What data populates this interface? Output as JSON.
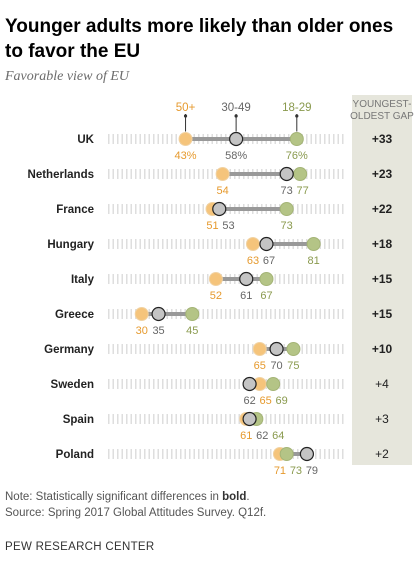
{
  "title_line1": "Younger adults more likely than older ones",
  "title_line2": "to favor the EU",
  "subtitle": "Favorable view of EU",
  "note_prefix": "Note: Statistically significant differences in ",
  "note_bold": "bold",
  "note_suffix": ".",
  "source": "Source: Spring 2017 Global Attitudes Survey. Q12f.",
  "brand": "PEW RESEARCH CENTER",
  "colors": {
    "age_50_plus": "#f5c47b",
    "age_30_49": "#c4c4c4",
    "age_18_29": "#b4c486",
    "label_50_plus": "#e69a2e",
    "label_30_49": "#666666",
    "label_18_29": "#8a9a4e",
    "gap_background": "#e6e6dc",
    "track": "#dedede",
    "connector": "#999999"
  },
  "chart_data": {
    "type": "dot-plot",
    "title": "Younger adults more likely than older ones to favor the EU",
    "subtitle": "Favorable view of EU",
    "unit": "%",
    "legend": {
      "placement": "top",
      "entries": [
        "50+",
        "30-49",
        "18-29"
      ]
    },
    "gap_header": [
      "YOUNGEST-",
      "OLDEST GAP"
    ],
    "xlim": [
      20,
      90
    ],
    "series": [
      {
        "name": "50+",
        "values": [
          43,
          54,
          51,
          63,
          52,
          30,
          65,
          65,
          61,
          71
        ]
      },
      {
        "name": "30-49",
        "values": [
          58,
          73,
          53,
          67,
          61,
          35,
          70,
          62,
          62,
          79
        ]
      },
      {
        "name": "18-29",
        "values": [
          76,
          77,
          73,
          81,
          67,
          45,
          75,
          69,
          64,
          73
        ]
      }
    ],
    "rows": [
      {
        "country": "UK",
        "v50": 43,
        "v30": 58,
        "v18": 76,
        "gap": "+33",
        "significant": true
      },
      {
        "country": "Netherlands",
        "v50": 54,
        "v30": 73,
        "v18": 77,
        "gap": "+23",
        "significant": true
      },
      {
        "country": "France",
        "v50": 51,
        "v30": 53,
        "v18": 73,
        "gap": "+22",
        "significant": true
      },
      {
        "country": "Hungary",
        "v50": 63,
        "v30": 67,
        "v18": 81,
        "gap": "+18",
        "significant": true
      },
      {
        "country": "Italy",
        "v50": 52,
        "v30": 61,
        "v18": 67,
        "gap": "+15",
        "significant": true
      },
      {
        "country": "Greece",
        "v50": 30,
        "v30": 35,
        "v18": 45,
        "gap": "+15",
        "significant": true
      },
      {
        "country": "Germany",
        "v50": 65,
        "v30": 70,
        "v18": 75,
        "gap": "+10",
        "significant": true
      },
      {
        "country": "Sweden",
        "v50": 65,
        "v30": 62,
        "v18": 69,
        "gap": "+4",
        "significant": false
      },
      {
        "country": "Spain",
        "v50": 61,
        "v30": 62,
        "v18": 64,
        "gap": "+3",
        "significant": false
      },
      {
        "country": "Poland",
        "v50": 71,
        "v30": 79,
        "v18": 73,
        "gap": "+2",
        "significant": false
      }
    ],
    "first_row_percent_sign": true
  }
}
